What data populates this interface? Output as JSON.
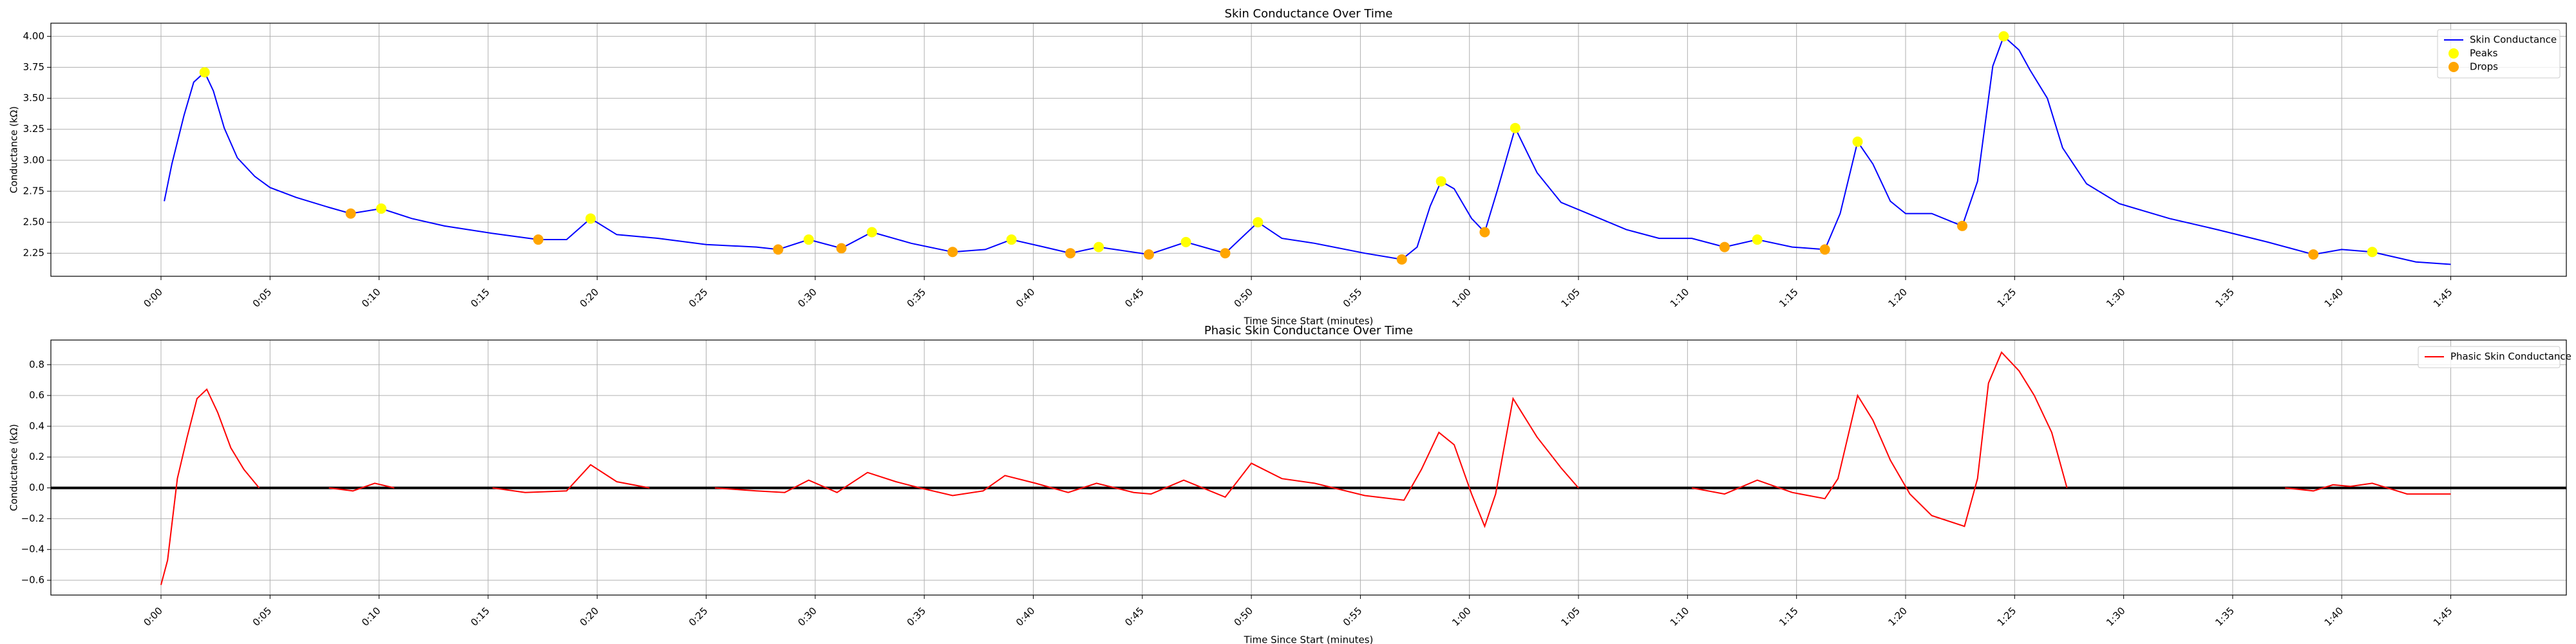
{
  "chart_data": [
    {
      "type": "line",
      "title": "Skin Conductance Over Time",
      "x_label": "Time Since Start (minutes)",
      "y_label": "Conductance (kΩ)",
      "xlim": [
        -5.05,
        110.3
      ],
      "ylim": [
        2.064,
        4.106
      ],
      "grid": true,
      "legend": "upper right",
      "xticks": [
        {
          "value": 0,
          "label": "0:00"
        },
        {
          "value": 5,
          "label": "0:05"
        },
        {
          "value": 10,
          "label": "0:10"
        },
        {
          "value": 15,
          "label": "0:15"
        },
        {
          "value": 20,
          "label": "0:20"
        },
        {
          "value": 25,
          "label": "0:25"
        },
        {
          "value": 30,
          "label": "0:30"
        },
        {
          "value": 35,
          "label": "0:35"
        },
        {
          "value": 40,
          "label": "0:40"
        },
        {
          "value": 45,
          "label": "0:45"
        },
        {
          "value": 50,
          "label": "0:50"
        },
        {
          "value": 55,
          "label": "0:55"
        },
        {
          "value": 60,
          "label": "1:00"
        },
        {
          "value": 65,
          "label": "1:05"
        },
        {
          "value": 70,
          "label": "1:10"
        },
        {
          "value": 75,
          "label": "1:15"
        },
        {
          "value": 80,
          "label": "1:20"
        },
        {
          "value": 85,
          "label": "1:25"
        },
        {
          "value": 90,
          "label": "1:30"
        },
        {
          "value": 95,
          "label": "1:35"
        },
        {
          "value": 100,
          "label": "1:40"
        },
        {
          "value": 105,
          "label": "1:45"
        }
      ],
      "yticks": [
        2.25,
        {
          "value": 2.5,
          "label": "2.50"
        },
        2.75,
        {
          "value": 3,
          "label": "3.00"
        },
        3.25,
        {
          "value": 3.5,
          "label": "3.50"
        },
        3.75,
        {
          "value": 4,
          "label": "4.00"
        }
      ],
      "series": [
        {
          "name": "Skin Conductance",
          "type": "line",
          "color": "#0000ff",
          "x": [
            0.15,
            0.5,
            1.05,
            1.5,
            2.0,
            2.4,
            2.9,
            3.5,
            4.3,
            5.0,
            6.2,
            7.7,
            8.7,
            10.1,
            11.5,
            13,
            15.2,
            17.3,
            18.6,
            19.7,
            20.9,
            22.8,
            25,
            27.3,
            28.3,
            29.7,
            31.2,
            32.6,
            34.4,
            36.3,
            37.8,
            39,
            40.5,
            41.7,
            43,
            45.3,
            47,
            48.8,
            50.3,
            51.4,
            52.9,
            55.2,
            56.9,
            57.6,
            58.2,
            58.7,
            59.3,
            60.1,
            60.7,
            61.3,
            62.1,
            63.1,
            64.2,
            65.3,
            67.2,
            68.7,
            70.2,
            71.7,
            73.2,
            74.8,
            76.3,
            77,
            77.8,
            78.5,
            79.3,
            80,
            81.2,
            82.6,
            83.3,
            84,
            84.5,
            85.2,
            85.7,
            86.5,
            87.2,
            88.3,
            89.8,
            92.1,
            94.3,
            96.6,
            98.7,
            100,
            101.4,
            103.4,
            105
          ],
          "values": [
            2.67,
            2.97,
            3.36,
            3.63,
            3.71,
            3.56,
            3.26,
            3.02,
            2.87,
            2.78,
            2.7,
            2.62,
            2.57,
            2.61,
            2.53,
            2.47,
            2.41,
            2.36,
            2.36,
            2.53,
            2.4,
            2.37,
            2.32,
            2.3,
            2.28,
            2.36,
            2.29,
            2.42,
            2.33,
            2.26,
            2.28,
            2.36,
            2.3,
            2.25,
            2.3,
            2.24,
            2.34,
            2.25,
            2.5,
            2.37,
            2.33,
            2.25,
            2.2,
            2.3,
            2.63,
            2.83,
            2.77,
            2.53,
            2.42,
            2.77,
            3.26,
            2.9,
            2.66,
            2.58,
            2.44,
            2.37,
            2.37,
            2.3,
            2.36,
            2.3,
            2.28,
            2.57,
            3.15,
            2.97,
            2.67,
            2.57,
            2.57,
            2.47,
            2.83,
            3.76,
            4.0,
            3.89,
            3.73,
            3.5,
            3.1,
            2.81,
            2.65,
            2.53,
            2.44,
            2.34,
            2.24,
            2.28,
            2.26,
            2.18,
            2.16
          ]
        },
        {
          "name": "Peaks",
          "type": "scatter",
          "color": "#ffff00",
          "x": [
            2.0,
            10.1,
            19.7,
            29.7,
            32.6,
            39,
            43,
            47,
            50.3,
            58.7,
            62.1,
            73.2,
            77.8,
            84.5,
            101.4
          ],
          "values": [
            3.71,
            2.61,
            2.53,
            2.36,
            2.42,
            2.36,
            2.3,
            2.34,
            2.5,
            2.83,
            3.26,
            2.36,
            3.15,
            4.0,
            2.26
          ]
        },
        {
          "name": "Drops",
          "type": "scatter",
          "color": "#ffa500",
          "x": [
            8.7,
            17.3,
            28.3,
            31.2,
            36.3,
            41.7,
            45.3,
            48.8,
            56.9,
            60.7,
            71.7,
            76.3,
            82.6,
            98.7
          ],
          "values": [
            2.57,
            2.36,
            2.28,
            2.29,
            2.26,
            2.25,
            2.24,
            2.25,
            2.2,
            2.42,
            2.3,
            2.28,
            2.47,
            2.24
          ]
        }
      ]
    },
    {
      "type": "line",
      "title": "Phasic Skin Conductance Over Time",
      "x_label": "Time Since Start (minutes)",
      "y_label": "Conductance (kΩ)",
      "xlim": [
        -5.05,
        110.3
      ],
      "ylim": [
        -0.696,
        0.96
      ],
      "grid": true,
      "legend": "upper right",
      "reference_line": 0,
      "xticks": [
        {
          "value": 0,
          "label": "0:00"
        },
        {
          "value": 5,
          "label": "0:05"
        },
        {
          "value": 10,
          "label": "0:10"
        },
        {
          "value": 15,
          "label": "0:15"
        },
        {
          "value": 20,
          "label": "0:20"
        },
        {
          "value": 25,
          "label": "0:25"
        },
        {
          "value": 30,
          "label": "0:30"
        },
        {
          "value": 35,
          "label": "0:35"
        },
        {
          "value": 40,
          "label": "0:40"
        },
        {
          "value": 45,
          "label": "0:45"
        },
        {
          "value": 50,
          "label": "0:50"
        },
        {
          "value": 55,
          "label": "0:55"
        },
        {
          "value": 60,
          "label": "1:00"
        },
        {
          "value": 65,
          "label": "1:05"
        },
        {
          "value": 70,
          "label": "1:10"
        },
        {
          "value": 75,
          "label": "1:15"
        },
        {
          "value": 80,
          "label": "1:20"
        },
        {
          "value": 85,
          "label": "1:25"
        },
        {
          "value": 90,
          "label": "1:30"
        },
        {
          "value": 95,
          "label": "1:35"
        },
        {
          "value": 100,
          "label": "1:40"
        },
        {
          "value": 105,
          "label": "1:45"
        }
      ],
      "yticks": [
        {
          "value": -0.6,
          "label": "−0.6"
        },
        {
          "value": -0.4,
          "label": "−0.4"
        },
        {
          "value": -0.2,
          "label": "−0.2"
        },
        {
          "value": 0,
          "label": "0.0"
        },
        0.2,
        0.4,
        0.6,
        0.8
      ],
      "series": [
        {
          "name": "Phasic Skin Conductance",
          "type": "line",
          "color": "#ff0000",
          "x": [
            0,
            0.3,
            0.75,
            1.2,
            1.65,
            2.1,
            2.6,
            3.2,
            3.8,
            4.5,
            null,
            7.7,
            8.8,
            9.8,
            10.7,
            null,
            15.2,
            16.7,
            18.6,
            19.7,
            20.9,
            22.4,
            null,
            25.4,
            27.3,
            28.6,
            29.7,
            31,
            32.4,
            33.7,
            34.8,
            36.3,
            37.7,
            38.7,
            40.1,
            41.6,
            42.9,
            44.6,
            45.4,
            46.9,
            48.8,
            50,
            51.4,
            52.9,
            55.2,
            57,
            57.8,
            58.6,
            59.3,
            60.1,
            60.7,
            61.2,
            62,
            63.1,
            64.2,
            65,
            null,
            70.2,
            71.7,
            73.2,
            74.8,
            76.3,
            76.9,
            77.8,
            78.5,
            79.3,
            80.2,
            81.2,
            82.7,
            83.3,
            83.8,
            84.4,
            85.2,
            85.9,
            86.7,
            87.4,
            null,
            97.4,
            98.7,
            99.6,
            100.4,
            101.4,
            103,
            105
          ],
          "values": [
            -0.63,
            -0.47,
            0.06,
            0.33,
            0.58,
            0.64,
            0.49,
            0.26,
            0.12,
            0.0,
            null,
            0.0,
            -0.02,
            0.03,
            0.0,
            null,
            0.0,
            -0.03,
            -0.02,
            0.15,
            0.04,
            0.0,
            null,
            0.0,
            -0.02,
            -0.03,
            0.05,
            -0.03,
            0.1,
            0.04,
            0.0,
            -0.05,
            -0.02,
            0.08,
            0.03,
            -0.03,
            0.03,
            -0.03,
            -0.04,
            0.05,
            -0.06,
            0.16,
            0.06,
            0.03,
            -0.05,
            -0.08,
            0.12,
            0.36,
            0.28,
            -0.04,
            -0.25,
            -0.04,
            0.58,
            0.33,
            0.13,
            0.0,
            null,
            0.0,
            -0.04,
            0.05,
            -0.03,
            -0.07,
            0.06,
            0.6,
            0.44,
            0.18,
            -0.04,
            -0.18,
            -0.25,
            0.06,
            0.68,
            0.88,
            0.76,
            0.6,
            0.36,
            0.0,
            null,
            0.0,
            -0.02,
            0.02,
            0.01,
            0.03,
            -0.04,
            -0.04
          ]
        }
      ]
    }
  ]
}
